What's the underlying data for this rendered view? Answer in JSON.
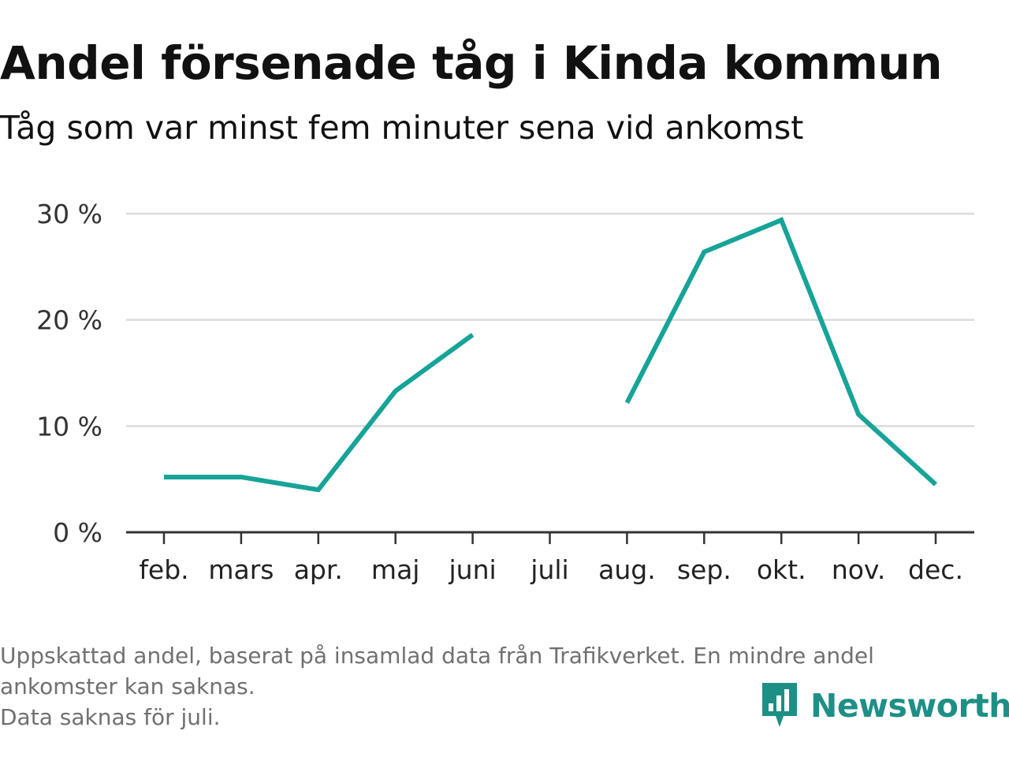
{
  "header": {
    "title": "Andel försenade tåg i Kinda kommun",
    "subtitle": "Tåg som var minst fem minuter sena vid ankomst"
  },
  "chart_data": {
    "type": "line",
    "categories": [
      "feb.",
      "mars",
      "apr.",
      "maj",
      "juni",
      "juli",
      "aug.",
      "sep.",
      "okt.",
      "nov.",
      "dec."
    ],
    "series": [
      {
        "values": [
          5.2,
          5.2,
          4.0,
          13.3,
          18.6,
          null,
          12.2,
          26.4,
          29.4,
          11.1,
          4.5
        ]
      }
    ],
    "ylim": [
      0,
      30
    ],
    "yticks": [
      0,
      10,
      20,
      30
    ],
    "ytick_labels": [
      "0 %",
      "10 %",
      "20 %",
      "30 %"
    ],
    "xlabel": "",
    "ylabel": "",
    "grid": true,
    "line_color": "#17a398"
  },
  "footnote": {
    "line1": "Uppskattad andel, baserat på insamlad data från Trafikverket. En mindre andel",
    "line2": "ankomster kan saknas.",
    "line3": "Data saknas för juli."
  },
  "brand": {
    "name": "Newsworthy",
    "icon": "newsworthy-logo-icon",
    "color": "#1e8f85"
  }
}
